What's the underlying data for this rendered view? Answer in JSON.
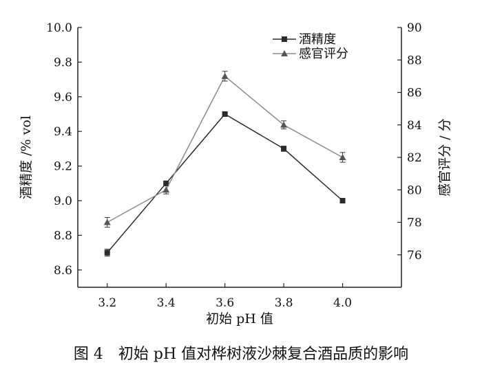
{
  "chart_data": {
    "type": "line",
    "x_ticks": [
      "3.2",
      "3.4",
      "3.6",
      "3.8",
      "4.0"
    ],
    "x": [
      3.2,
      3.4,
      3.6,
      3.8,
      4.0
    ],
    "xlabel": "初始 pH 值",
    "ylabel_left": "酒精度 /% vol",
    "ylabel_right": "感官评分 / 分",
    "ylim_left": [
      8.5,
      10.0
    ],
    "ylim_right": [
      74,
      90
    ],
    "y_ticks_left": [
      "8.6",
      "8.8",
      "9.0",
      "9.2",
      "9.4",
      "9.6",
      "9.8",
      "10.0"
    ],
    "y_ticks_right": [
      "76",
      "78",
      "80",
      "82",
      "84",
      "86",
      "88",
      "90"
    ],
    "legend_position": "top-right",
    "grid": false,
    "series": [
      {
        "name": "酒精度",
        "axis": "left",
        "marker": "square",
        "values": [
          8.7,
          9.1,
          9.5,
          9.3,
          9.0
        ],
        "errors": [
          0.02,
          0.01,
          0.01,
          0.015,
          0.01
        ]
      },
      {
        "name": "感官评分",
        "axis": "right",
        "marker": "triangle",
        "values": [
          78,
          80,
          87,
          84,
          82
        ],
        "errors": [
          0.3,
          0.25,
          0.3,
          0.25,
          0.3
        ]
      }
    ]
  },
  "caption": "图 4　初始 pH 值对桦树液沙棘复合酒品质的影响",
  "colors": {
    "series1": "#2b2b2b",
    "series2": "#8a8a8a",
    "axis": "#222222"
  }
}
